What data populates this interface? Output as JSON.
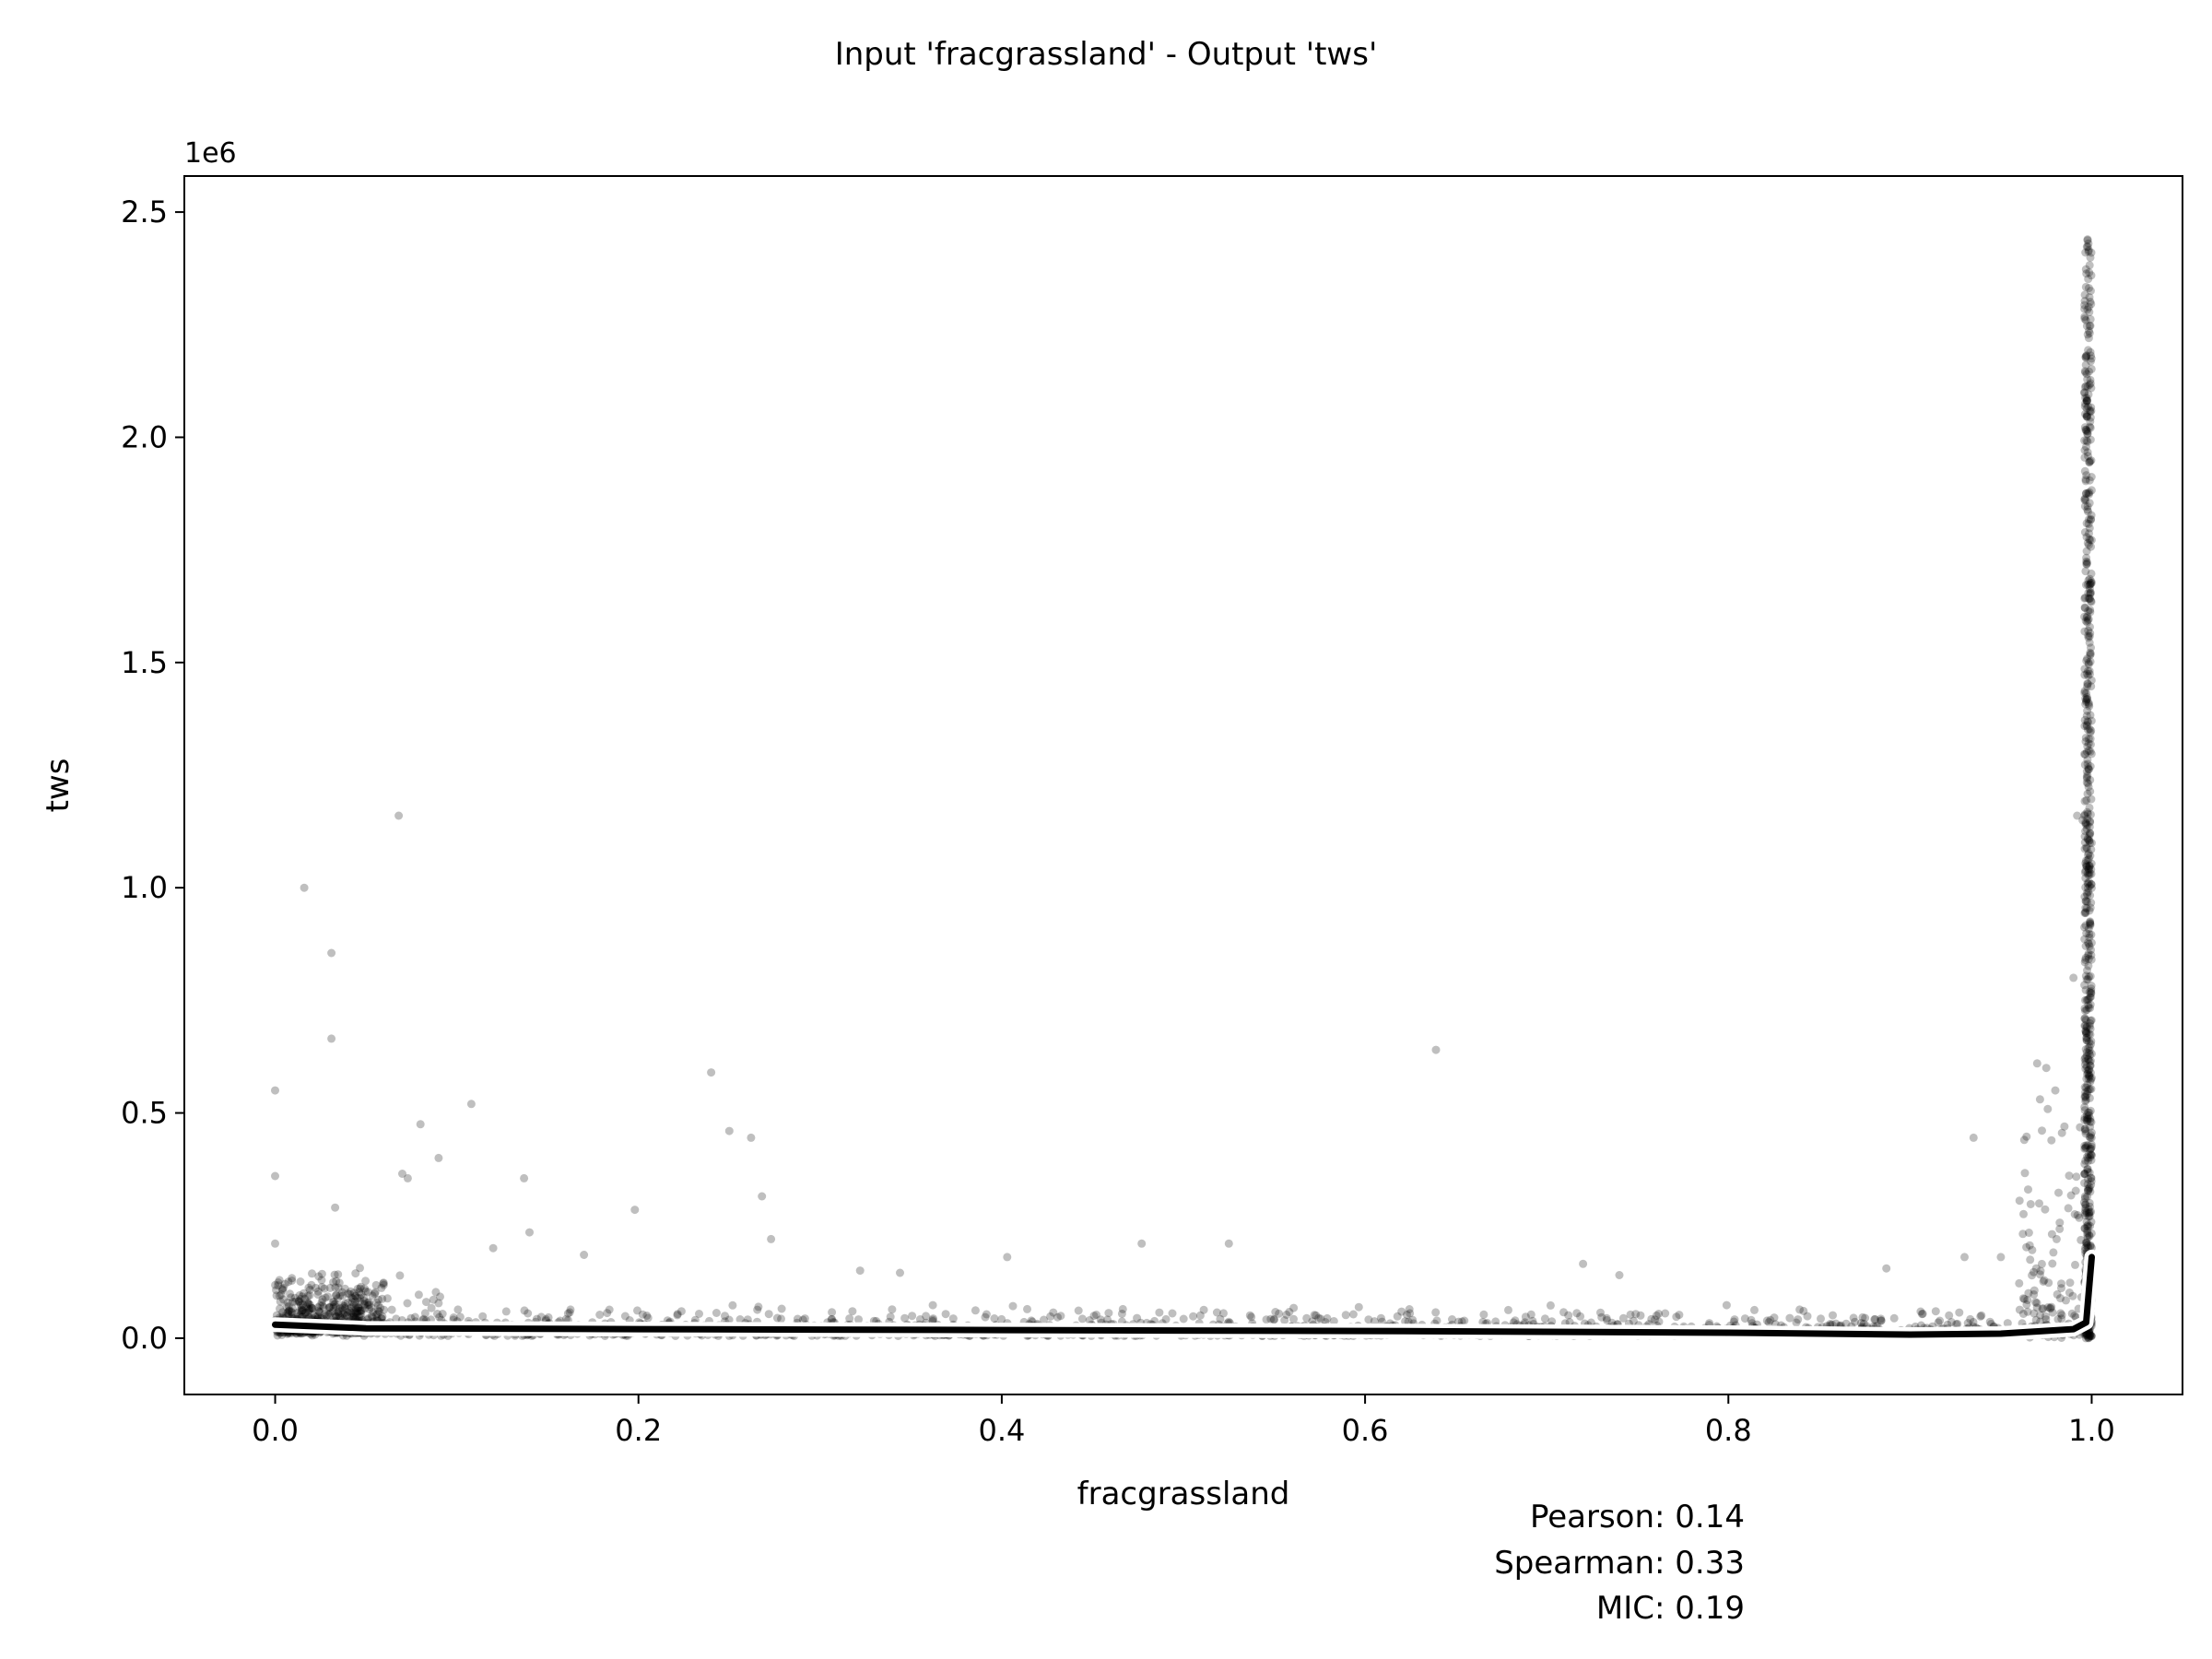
{
  "chart_data": {
    "type": "scatter",
    "title": "Input 'fracgrassland' - Output 'tws'",
    "xlabel": "fracgrassland",
    "ylabel": "tws",
    "y_offset_label": "1e6",
    "xlim": [
      -0.05,
      1.05
    ],
    "ylim": [
      -0.125,
      2.58
    ],
    "y_scale_factor": 1000000,
    "x_ticks": [
      0.0,
      0.2,
      0.4,
      0.6,
      0.8,
      1.0
    ],
    "x_tick_labels": [
      "0.0",
      "0.2",
      "0.4",
      "0.6",
      "0.8",
      "1.0"
    ],
    "y_ticks": [
      0.0,
      0.5,
      1.0,
      1.5,
      2.0,
      2.5
    ],
    "y_tick_labels": [
      "0.0",
      "0.5",
      "1.0",
      "1.5",
      "2.0",
      "2.5"
    ],
    "grid": false,
    "marker_color": "#000000",
    "trend_line_color": "#000000",
    "trend_halo_color": "#ffffff",
    "points": [
      [
        0.0,
        0.55
      ],
      [
        0.0,
        0.36
      ],
      [
        0.0,
        0.21
      ],
      [
        0.016,
        1.0
      ],
      [
        0.031,
        0.855
      ],
      [
        0.031,
        0.665
      ],
      [
        0.033,
        0.29
      ],
      [
        0.068,
        1.16
      ],
      [
        0.07,
        0.365
      ],
      [
        0.073,
        0.355
      ],
      [
        0.08,
        0.475
      ],
      [
        0.09,
        0.4
      ],
      [
        0.108,
        0.52
      ],
      [
        0.12,
        0.2
      ],
      [
        0.137,
        0.355
      ],
      [
        0.14,
        0.235
      ],
      [
        0.17,
        0.185
      ],
      [
        0.198,
        0.285
      ],
      [
        0.24,
        0.59
      ],
      [
        0.25,
        0.46
      ],
      [
        0.262,
        0.445
      ],
      [
        0.268,
        0.315
      ],
      [
        0.273,
        0.22
      ],
      [
        0.322,
        0.15
      ],
      [
        0.344,
        0.145
      ],
      [
        0.403,
        0.18
      ],
      [
        0.477,
        0.21
      ],
      [
        0.525,
        0.21
      ],
      [
        0.639,
        0.64
      ],
      [
        0.72,
        0.165
      ],
      [
        0.74,
        0.14
      ],
      [
        0.887,
        0.155
      ],
      [
        0.935,
        0.445
      ],
      [
        0.93,
        0.18
      ],
      [
        0.95,
        0.18
      ],
      [
        0.965,
        0.33
      ],
      [
        0.97,
        0.61
      ],
      [
        0.975,
        0.6
      ],
      [
        0.98,
        0.55
      ],
      [
        0.985,
        0.47
      ],
      [
        0.99,
        0.8
      ],
      [
        0.992,
        1.16
      ],
      [
        0.995,
        1.15
      ],
      [
        0.996,
        2.1
      ],
      [
        0.997,
        1.05
      ],
      [
        0.998,
        0.62
      ],
      [
        0.998,
        0.4
      ]
    ],
    "trend": [
      [
        0.0,
        0.03
      ],
      [
        0.05,
        0.022
      ],
      [
        0.2,
        0.02
      ],
      [
        0.4,
        0.018
      ],
      [
        0.6,
        0.016
      ],
      [
        0.8,
        0.012
      ],
      [
        0.9,
        0.008
      ],
      [
        0.95,
        0.01
      ],
      [
        0.99,
        0.02
      ],
      [
        0.997,
        0.035
      ],
      [
        1.0,
        0.18
      ]
    ],
    "stats": [
      "Pearson: 0.14",
      "Spearman: 0.33",
      "MIC: 0.19"
    ]
  }
}
